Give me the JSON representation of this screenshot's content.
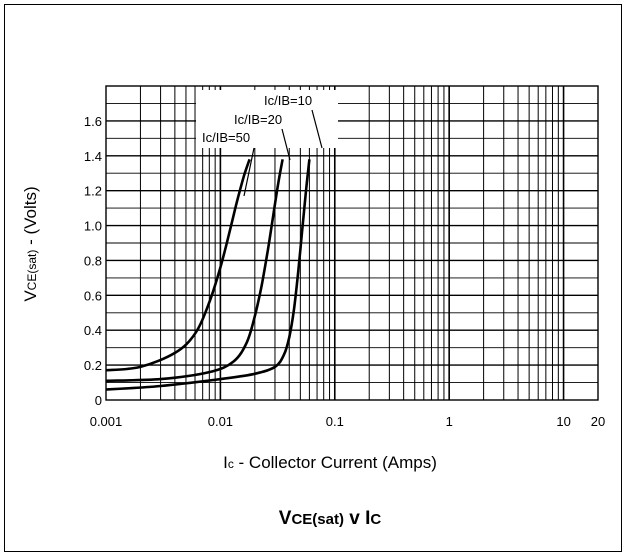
{
  "chart_data": {
    "type": "line",
    "title": "VCE(sat) v IC",
    "title_parts": {
      "v_main": "V",
      "v_sub": "CE(sat)",
      "mid": " v I",
      "c_sub": "C"
    },
    "xlabel": "Ic - Collector Current (Amps)",
    "xlabel_parts": {
      "i": "I",
      "i_sub": "c",
      "rest": " - Collector Current (Amps)"
    },
    "ylabel": "VCE(sat) - (Volts)",
    "ylabel_parts": {
      "v": "V",
      "v_sub": "CE(sat)",
      "rest": " - (Volts)"
    },
    "x_scale": "log",
    "xlim": [
      0.001,
      20
    ],
    "ylim": [
      0,
      1.8
    ],
    "grid": true,
    "x_tick_labels": [
      "0.001",
      "0.01",
      "0.1",
      "1",
      "10",
      "20"
    ],
    "x_ticks": [
      0.001,
      0.01,
      0.1,
      1,
      10,
      20
    ],
    "y_tick_labels": [
      "0",
      "0.2",
      "0.4",
      "0.6",
      "0.8",
      "1.0",
      "1.2",
      "1.4",
      "1.6"
    ],
    "y_ticks": [
      0,
      0.2,
      0.4,
      0.6,
      0.8,
      1.0,
      1.2,
      1.4,
      1.6
    ],
    "series": [
      {
        "label": "Ic/IB=10",
        "x": [
          0.001,
          0.003,
          0.01,
          0.02,
          0.03,
          0.036,
          0.04,
          0.044,
          0.048,
          0.052,
          0.056,
          0.06
        ],
        "y": [
          0.06,
          0.08,
          0.12,
          0.15,
          0.19,
          0.26,
          0.36,
          0.52,
          0.74,
          0.98,
          1.2,
          1.38
        ]
      },
      {
        "label": "Ic/IB=20",
        "x": [
          0.001,
          0.003,
          0.008,
          0.013,
          0.017,
          0.02,
          0.023,
          0.026,
          0.029,
          0.032,
          0.035
        ],
        "y": [
          0.11,
          0.12,
          0.16,
          0.22,
          0.33,
          0.48,
          0.66,
          0.86,
          1.06,
          1.24,
          1.38
        ]
      },
      {
        "label": "Ic/IB=50",
        "x": [
          0.001,
          0.002,
          0.004,
          0.006,
          0.008,
          0.01,
          0.012,
          0.014,
          0.016,
          0.018
        ],
        "y": [
          0.17,
          0.19,
          0.27,
          0.38,
          0.56,
          0.76,
          0.96,
          1.14,
          1.28,
          1.38
        ]
      }
    ]
  }
}
